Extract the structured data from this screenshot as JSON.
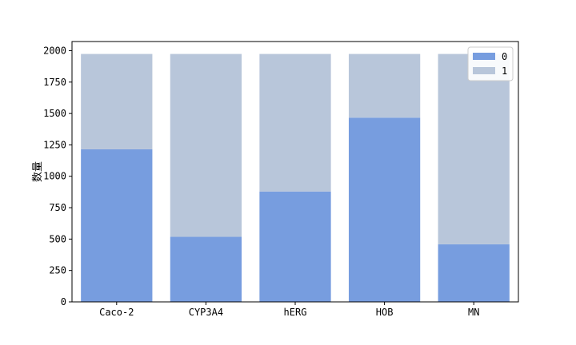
{
  "chart_data": {
    "type": "bar",
    "stacked": true,
    "categories": [
      "Caco-2",
      "CYP3A4",
      "hERG",
      "HOB",
      "MN"
    ],
    "series": [
      {
        "name": "0",
        "values": [
          1215,
          518,
          879,
          1467,
          459
        ],
        "color": "#779ddf"
      },
      {
        "name": "1",
        "values": [
          759,
          1456,
          1095,
          507,
          1515
        ],
        "color": "#b8c6da"
      }
    ],
    "xlabel": "",
    "ylabel": "数量",
    "ylim": [
      0,
      2073
    ],
    "yticks": [
      0,
      250,
      500,
      750,
      1000,
      1250,
      1500,
      1750,
      2000
    ],
    "grid": false,
    "legend_position": "top-right"
  }
}
